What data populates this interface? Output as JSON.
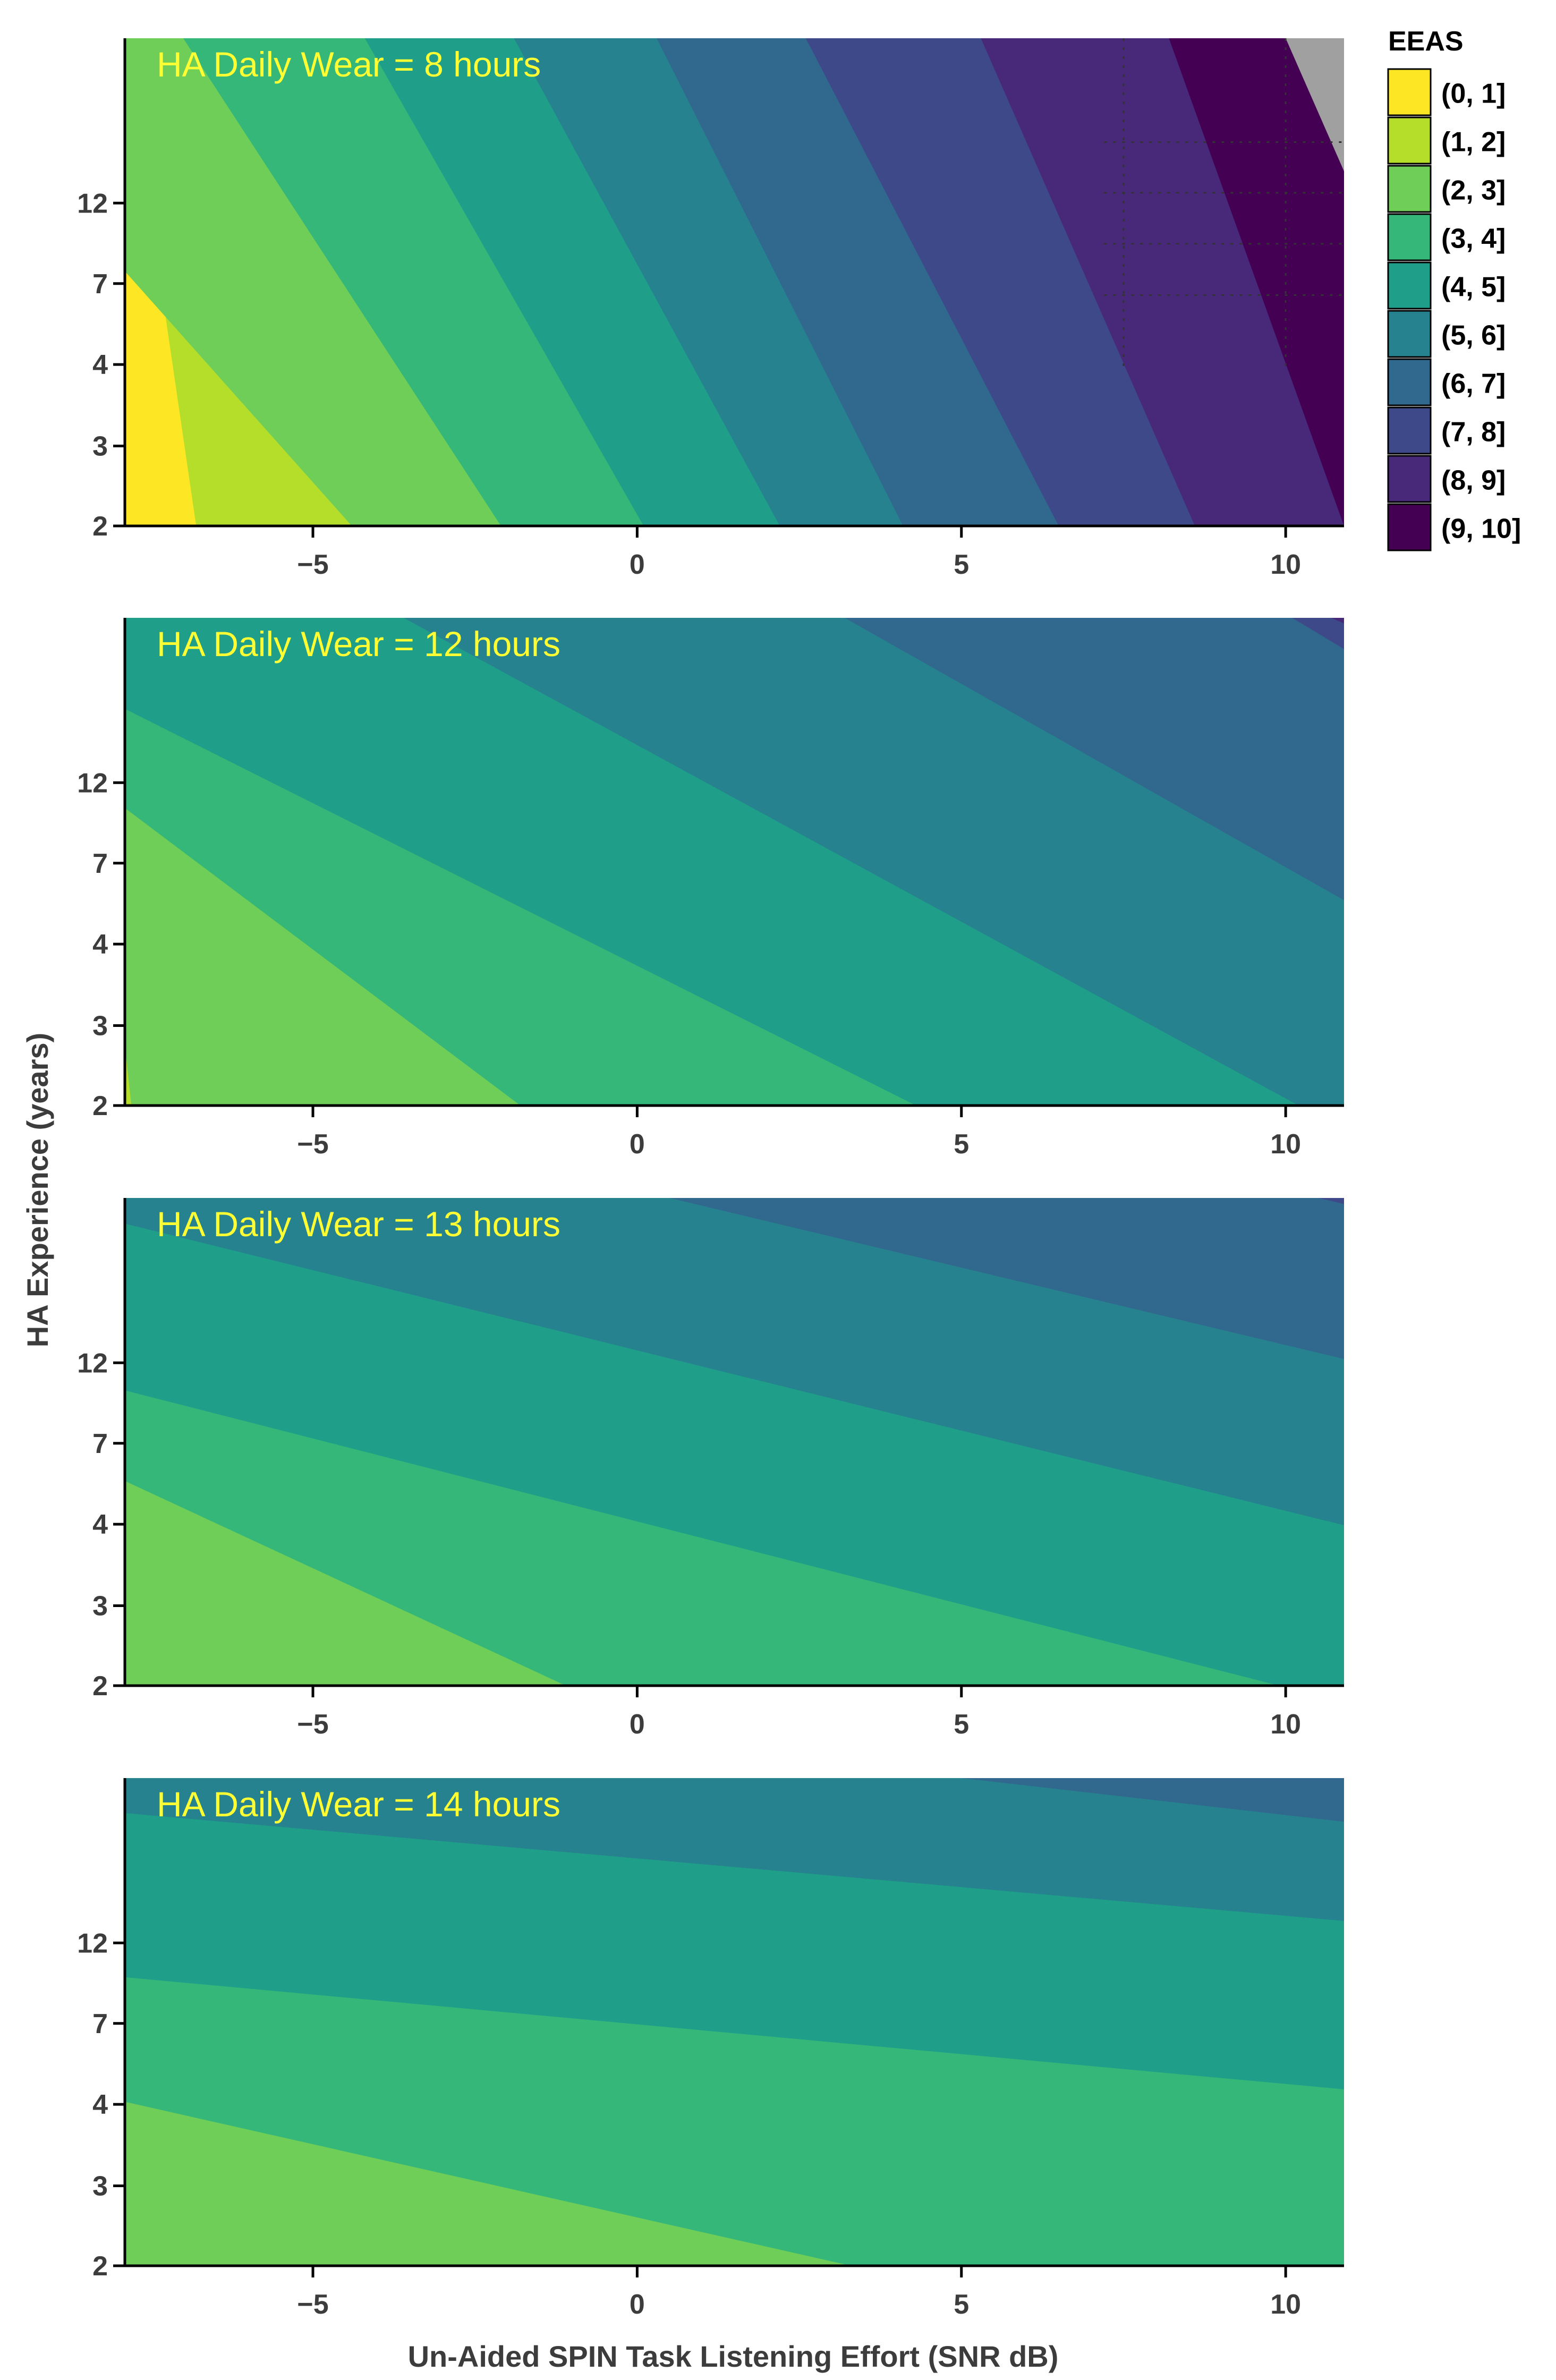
{
  "chart_data": {
    "type": "contour",
    "xlabel": "Un-Aided SPIN Task Listening Effort (SNR dB)",
    "ylabel": "HA Experience (years)",
    "xlim": [
      -7.9,
      10.9
    ],
    "x_ticks": [
      -5,
      0,
      5,
      10
    ],
    "x_tick_labels": [
      "−5",
      "0",
      "5",
      "10"
    ],
    "y_ticks": [
      "12",
      "7",
      "4",
      "3",
      "2"
    ],
    "legend": {
      "title": "EEAS",
      "placement": "right",
      "bins": [
        "(0, 1]",
        "(1, 2]",
        "(2, 3]",
        "(3, 4]",
        "(4, 5]",
        "(5, 6]",
        "(6, 7]",
        "(7, 8]",
        "(8, 9]",
        "(9, 10]"
      ],
      "colors": [
        "#fde725",
        "#b5de2b",
        "#6ece58",
        "#35b779",
        "#1f9e89",
        "#26828e",
        "#31688e",
        "#3e4989",
        "#482878",
        "#440154"
      ]
    },
    "out_of_range_color": "#a0a0a0",
    "panels": [
      {
        "title": "HA Daily Wear = 8 hours",
        "boundaries": [
          {
            "level": 1,
            "x_bottom": -6.8,
            "x_top": -7.9
          },
          {
            "level": 2,
            "x_bottom": -4.4,
            "x_top": -11.1
          },
          {
            "level": 3,
            "x_bottom": -2.1,
            "x_top": -7.0
          },
          {
            "level": 4,
            "x_bottom": 0.1,
            "x_top": -4.2
          },
          {
            "level": 5,
            "x_bottom": 2.2,
            "x_top": -1.9
          },
          {
            "level": 6,
            "x_bottom": 4.1,
            "x_top": 0.3
          },
          {
            "level": 7,
            "x_bottom": 6.5,
            "x_top": 2.6
          },
          {
            "level": 8,
            "x_bottom": 8.6,
            "x_top": 5.3
          },
          {
            "level": 9,
            "x_bottom": 10.9,
            "x_top": 8.2
          },
          {
            "level": 10,
            "x_bottom": 13.3,
            "x_top": 10.0
          }
        ]
      },
      {
        "title": "HA Daily Wear = 12 hours",
        "boundaries": [
          {
            "level": 2,
            "x_bottom": -7.8,
            "x_top": -8.6
          },
          {
            "level": 3,
            "x_bottom": -1.8,
            "x_top": -11.8
          },
          {
            "level": 4,
            "x_bottom": 4.3,
            "x_top": -10.7
          },
          {
            "level": 5,
            "x_bottom": 10.2,
            "x_top": -3.6
          },
          {
            "level": 6,
            "x_bottom": 16.5,
            "x_top": 3.2
          },
          {
            "level": 7,
            "x_bottom": 22.6,
            "x_top": 10.1
          },
          {
            "level": 8,
            "x_bottom": 28.5,
            "x_top": 10.7
          }
        ]
      },
      {
        "title": "HA Daily Wear = 13 hours",
        "boundaries": [
          {
            "level": 3,
            "x_bottom": -1.1,
            "x_top": -17.3
          },
          {
            "level": 4,
            "x_bottom": 9.9,
            "x_top": -19.5
          },
          {
            "level": 5,
            "x_bottom": 20.9,
            "x_top": -9.5
          },
          {
            "level": 6,
            "x_bottom": 32.0,
            "x_top": 0.5
          },
          {
            "level": 7,
            "x_bottom": 43.0,
            "x_top": 10.5
          }
        ]
      },
      {
        "title": "HA Daily Wear = 14 hours",
        "boundaries": [
          {
            "level": 3,
            "x_bottom": 3.3,
            "x_top": -30.0
          },
          {
            "level": 4,
            "x_bottom": 40.5,
            "x_top": -41.3
          },
          {
            "level": 5,
            "x_bottom": 71.0,
            "x_top": -14.0
          },
          {
            "level": 6,
            "x_bottom": 71.0,
            "x_top": 5.0
          }
        ]
      }
    ]
  }
}
